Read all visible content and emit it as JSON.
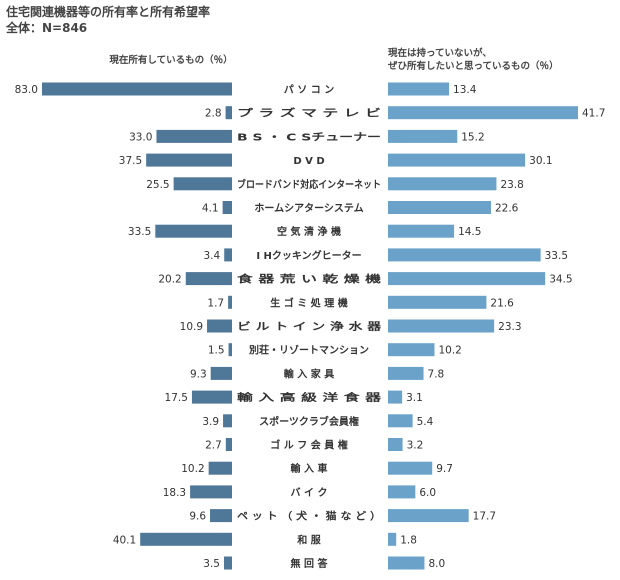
{
  "title": "住宅関連機器等の所有率と所有希望率",
  "subtitle": "全体：N=846",
  "chart_data": {
    "type": "bar",
    "left_label": "現在所有しているもの（％）",
    "right_label": [
      "現在は持っていないが、",
      "ぜひ所有したいと思っているもの（％）"
    ],
    "categories": [
      "パ ソ コ ン",
      "プ ラ ズ マ テ レ ビ",
      "B S ・ C Sチューナー",
      "D V D",
      "ブロードバンド対応インターネット",
      "ホームシアターシステム",
      "空 気 清 浄 機",
      "I Hクッキングヒーター",
      "食 器 荒 い 乾 燥 機",
      "生 ゴ ミ 処 理 機",
      "ビ ル ト イ ン 浄 水 器",
      "別荘・リゾートマンション",
      "輸 入 家 具",
      "輸 入 高 級 洋 食 器",
      "スポーツクラブ会員権",
      "ゴ ル フ 会 員 権",
      "輸 入 車",
      "バ イ ク",
      "ペ ッ ト （ 犬 ・ 猫 な ど ）",
      "和 服",
      "無 回 答"
    ],
    "series": [
      {
        "name": "現在所有しているもの（％）",
        "color": "#4f7797",
        "values": [
          83.0,
          2.8,
          33.0,
          37.5,
          25.5,
          4.1,
          33.5,
          3.4,
          20.2,
          1.7,
          10.9,
          1.5,
          9.3,
          17.5,
          3.9,
          2.7,
          10.2,
          18.3,
          9.6,
          40.1,
          3.5
        ]
      },
      {
        "name": "現在は持っていないが、ぜひ所有したいと思っているもの（％）",
        "color": "#6aa2c9",
        "values": [
          13.4,
          41.7,
          15.2,
          30.1,
          23.8,
          22.6,
          14.5,
          33.5,
          34.5,
          21.6,
          23.3,
          10.2,
          7.8,
          3.1,
          5.4,
          3.2,
          9.7,
          6.0,
          17.7,
          1.8,
          8.0
        ]
      }
    ],
    "grid": false
  }
}
